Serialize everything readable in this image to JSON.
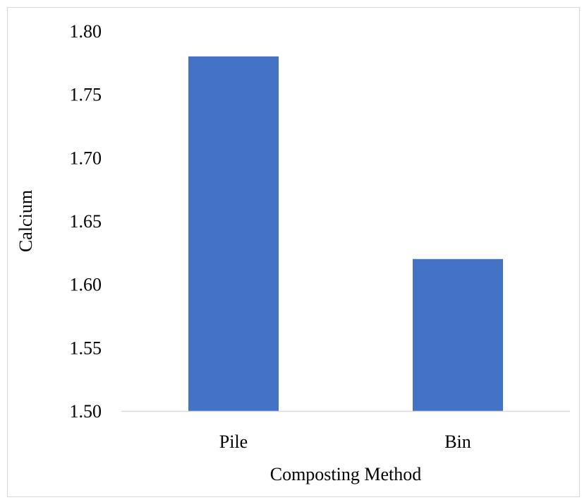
{
  "chart_data": {
    "type": "bar",
    "title": "",
    "categories": [
      "Pile",
      "Bin"
    ],
    "values": [
      1.78,
      1.62
    ],
    "xlabel": "Composting Method",
    "ylabel": "Calcium",
    "ylim": [
      1.5,
      1.8
    ],
    "yticks": [
      "1.50",
      "1.55",
      "1.60",
      "1.65",
      "1.70",
      "1.75",
      "1.80"
    ],
    "grid": false,
    "legend": "none",
    "bar_color": "#4472C4",
    "axis_color": "#d9d9d9"
  }
}
